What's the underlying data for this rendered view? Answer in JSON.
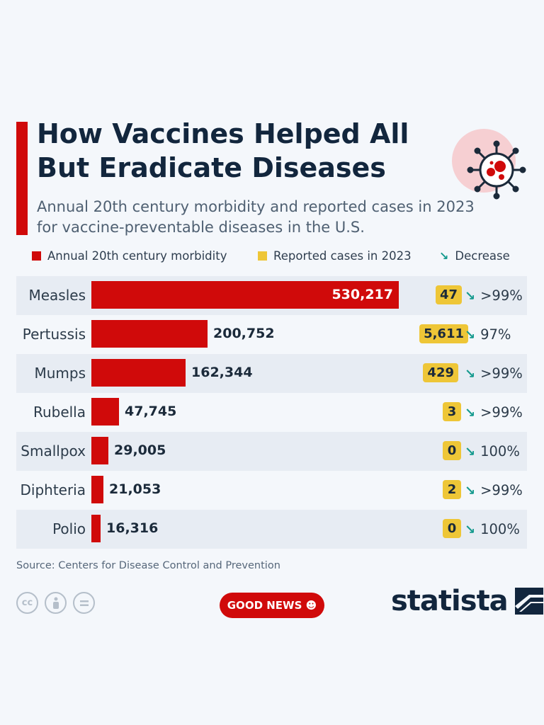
{
  "title": "How Vaccines Helped All But Eradicate Diseases",
  "subtitle": "Annual 20th century morbidity and reported cases in 2023 for vaccine-preventable diseases in the U.S.",
  "legend": {
    "morbidity": "Annual 20th century morbidity",
    "reported": "Reported cases in 2023",
    "decrease": "Decrease"
  },
  "colors": {
    "morbidity_bar": "#d00a0a",
    "reported_badge": "#eec637",
    "decrease_arrow": "#159a8e",
    "title": "#12263d"
  },
  "icons": {
    "decrease": "down-right-arrow-icon",
    "header": "virus-icon"
  },
  "chart_data": {
    "type": "bar",
    "orientation": "horizontal",
    "title": "How Vaccines Helped All But Eradicate Diseases",
    "subtitle": "Annual 20th century morbidity and reported cases in 2023 for vaccine-preventable diseases in the U.S.",
    "categories": [
      "Measles",
      "Pertussis",
      "Mumps",
      "Rubella",
      "Smallpox",
      "Diphteria",
      "Polio"
    ],
    "series": [
      {
        "name": "Annual 20th century morbidity",
        "values": [
          530217,
          200752,
          162344,
          47745,
          29005,
          21053,
          16316
        ]
      },
      {
        "name": "Reported cases in 2023",
        "values": [
          47,
          5611,
          429,
          3,
          0,
          2,
          0
        ]
      }
    ],
    "value_labels": [
      "530,217",
      "200,752",
      "162,344",
      "47,745",
      "29,005",
      "21,053",
      "16,316"
    ],
    "reported_labels": [
      "47",
      "5,611",
      "429",
      "3",
      "0",
      "2",
      "0"
    ],
    "decrease": [
      ">99%",
      "97%",
      ">99%",
      ">99%",
      "100%",
      ">99%",
      "100%"
    ],
    "xlim": [
      0,
      530217
    ],
    "legend_position": "top",
    "grid": false
  },
  "footer": {
    "source": "Source: Centers for Disease Control and Prevention",
    "badge": "GOOD NEWS ☻",
    "brand": "statista",
    "license_icons": [
      "cc-icon",
      "attribution-icon",
      "no-derivatives-icon"
    ]
  }
}
